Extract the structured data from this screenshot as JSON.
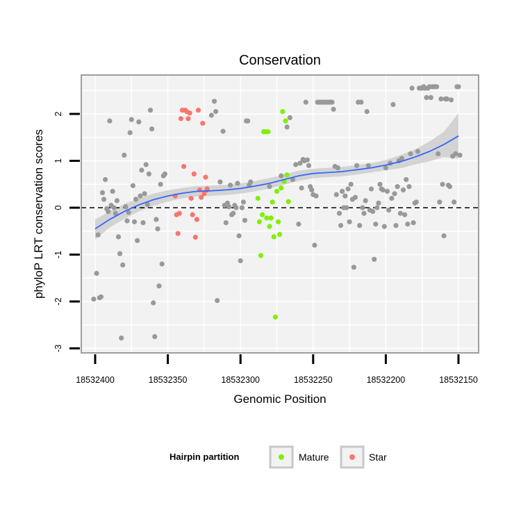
{
  "chart_data": {
    "type": "scatter",
    "title": "Conservation",
    "xlabel": "Genomic Position",
    "ylabel": "phyloP LRT conservation scores",
    "x_reversed": true,
    "xlim": [
      18532410,
      18532136
    ],
    "ylim": [
      -3.05,
      2.8
    ],
    "x_ticks": [
      18532400,
      18532350,
      18532300,
      18532250,
      18532200,
      18532150
    ],
    "x_tick_labels": [
      "18532400",
      "18532350",
      "18532300",
      "18532250",
      "18532200",
      "18532150"
    ],
    "y_ticks": [
      2,
      1,
      0,
      -1,
      -2,
      -3
    ],
    "y_tick_labels": [
      "2",
      "1",
      "0",
      "-1",
      "-2",
      "-3"
    ],
    "reference_line": {
      "y": 0,
      "style": "dashed"
    },
    "legend": {
      "title": "Hairpin partition",
      "position": "bottom",
      "entries": [
        {
          "label": "Mature",
          "color": "#7FF000"
        },
        {
          "label": "Star",
          "color": "#F8766D"
        }
      ]
    },
    "colors": {
      "other": "#999999",
      "mature": "#7FF000",
      "star": "#F8766D",
      "smooth": "#3366FF",
      "band": "#C8C8C8"
    },
    "smooth": {
      "x": [
        18532400,
        18532390,
        18532380,
        18532370,
        18532360,
        18532350,
        18532340,
        18532330,
        18532320,
        18532310,
        18532300,
        18532290,
        18532280,
        18532270,
        18532260,
        18532250,
        18532240,
        18532230,
        18532220,
        18532210,
        18532200,
        18532190,
        18532180,
        18532170,
        18532160,
        18532150
      ],
      "y": [
        -0.45,
        -0.25,
        -0.08,
        0.06,
        0.17,
        0.25,
        0.31,
        0.35,
        0.36,
        0.38,
        0.41,
        0.46,
        0.52,
        0.6,
        0.68,
        0.73,
        0.75,
        0.77,
        0.81,
        0.85,
        0.91,
        0.98,
        1.08,
        1.2,
        1.35,
        1.53
      ],
      "upper": [
        -0.25,
        -0.08,
        0.08,
        0.2,
        0.3,
        0.37,
        0.42,
        0.46,
        0.47,
        0.49,
        0.52,
        0.57,
        0.63,
        0.71,
        0.79,
        0.83,
        0.85,
        0.87,
        0.91,
        0.95,
        1.02,
        1.12,
        1.24,
        1.41,
        1.62,
        2.02
      ],
      "lower": [
        -0.68,
        -0.42,
        -0.24,
        -0.08,
        0.04,
        0.13,
        0.2,
        0.24,
        0.25,
        0.27,
        0.3,
        0.35,
        0.41,
        0.49,
        0.57,
        0.63,
        0.65,
        0.67,
        0.71,
        0.75,
        0.8,
        0.84,
        0.92,
        0.99,
        1.08,
        1.05
      ]
    },
    "series": [
      {
        "name": "Other",
        "points": [
          [
            18532401,
            -1.95
          ],
          [
            18532399,
            -1.4
          ],
          [
            18532398,
            -0.58
          ],
          [
            18532397,
            -1.92
          ],
          [
            18532396,
            -1.9
          ],
          [
            18532395,
            0.32
          ],
          [
            18532394,
            0.18
          ],
          [
            18532393,
            0.6
          ],
          [
            18532392,
            -0.02
          ],
          [
            18532391,
            -0.08
          ],
          [
            18532390,
            1.85
          ],
          [
            18532389,
            0.05
          ],
          [
            18532388,
            0.35
          ],
          [
            18532387,
            0.0
          ],
          [
            18532386,
            -0.12
          ],
          [
            18532385,
            0.15
          ],
          [
            18532384,
            -0.62
          ],
          [
            18532383,
            -0.98
          ],
          [
            18532382,
            -2.78
          ],
          [
            18532381,
            -1.22
          ],
          [
            18532380,
            1.12
          ],
          [
            18532379,
            0.02
          ],
          [
            18532378,
            -0.28
          ],
          [
            18532377,
            -0.1
          ],
          [
            18532376,
            1.6
          ],
          [
            18532375,
            1.88
          ],
          [
            18532374,
            0.47
          ],
          [
            18532373,
            -0.3
          ],
          [
            18532372,
            0.18
          ],
          [
            18532371,
            -0.7
          ],
          [
            18532370,
            1.83
          ],
          [
            18532369,
            0.25
          ],
          [
            18532368,
            0.8
          ],
          [
            18532367,
            -0.32
          ],
          [
            18532366,
            0.3
          ],
          [
            18532365,
            0.92
          ],
          [
            18532364,
            0.07
          ],
          [
            18532363,
            0.72
          ],
          [
            18532362,
            2.08
          ],
          [
            18532361,
            1.68
          ],
          [
            18532360,
            -2.03
          ],
          [
            18532359,
            -2.75
          ],
          [
            18532358,
            -0.25
          ],
          [
            18532357,
            -0.45
          ],
          [
            18532356,
            -1.67
          ],
          [
            18532355,
            0.5
          ],
          [
            18532354,
            -1.2
          ],
          [
            18532353,
            0.68
          ],
          [
            18532352,
            0.72
          ],
          [
            18532306,
            -0.15
          ],
          [
            18532323,
            0.38
          ],
          [
            18532320,
            1.97
          ],
          [
            18532318,
            2.27
          ],
          [
            18532317,
            2.05
          ],
          [
            18532316,
            -1.98
          ],
          [
            18532314,
            0.55
          ],
          [
            18532312,
            1.63
          ],
          [
            18532311,
            0.05
          ],
          [
            18532310,
            -0.32
          ],
          [
            18532309,
            0.1
          ],
          [
            18532308,
            0.02
          ],
          [
            18532307,
            0.48
          ],
          [
            18532305,
            -0.12
          ],
          [
            18532304,
            0.05
          ],
          [
            18532303,
            0.0
          ],
          [
            18532302,
            0.52
          ],
          [
            18532301,
            -0.6
          ],
          [
            18532300,
            -1.13
          ],
          [
            18532299,
            0.0
          ],
          [
            18532298,
            0.12
          ],
          [
            18532297,
            -0.27
          ],
          [
            18532296,
            1.85
          ],
          [
            18532295,
            1.85
          ],
          [
            18532294,
            0.48
          ],
          [
            18532293,
            0.55
          ],
          [
            18532280,
            0.45
          ],
          [
            18532272,
            0.68
          ],
          [
            18532268,
            1.72
          ],
          [
            18532266,
            1.92
          ],
          [
            18532264,
            0.6
          ],
          [
            18532262,
            0.92
          ],
          [
            18532260,
            -0.35
          ],
          [
            18532259,
            0.95
          ],
          [
            18532258,
            0.42
          ],
          [
            18532257,
            1.03
          ],
          [
            18532256,
            1.0
          ],
          [
            18532255,
            2.25
          ],
          [
            18532254,
            1.02
          ],
          [
            18532253,
            0.9
          ],
          [
            18532252,
            0.45
          ],
          [
            18532251,
            0.38
          ],
          [
            18532250,
            0.28
          ],
          [
            18532249,
            -0.8
          ],
          [
            18532248,
            0.25
          ],
          [
            18532247,
            2.25
          ],
          [
            18532246,
            2.25
          ],
          [
            18532245,
            2.25
          ],
          [
            18532244,
            2.25
          ],
          [
            18532243,
            2.25
          ],
          [
            18532242,
            2.25
          ],
          [
            18532241,
            2.25
          ],
          [
            18532240,
            2.25
          ],
          [
            18532239,
            2.25
          ],
          [
            18532238,
            2.25
          ],
          [
            18532237,
            2.25
          ],
          [
            18532236,
            2.1
          ],
          [
            18532235,
            0.88
          ],
          [
            18532234,
            0.28
          ],
          [
            18532233,
            0.85
          ],
          [
            18532232,
            -0.12
          ],
          [
            18532231,
            -0.38
          ],
          [
            18532230,
            0.35
          ],
          [
            18532229,
            0.0
          ],
          [
            18532228,
            0.25
          ],
          [
            18532227,
            0.0
          ],
          [
            18532226,
            0.4
          ],
          [
            18532225,
            -0.3
          ],
          [
            18532224,
            0.5
          ],
          [
            18532223,
            0.18
          ],
          [
            18532222,
            -1.27
          ],
          [
            18532221,
            0.22
          ],
          [
            18532220,
            0.9
          ],
          [
            18532219,
            2.25
          ],
          [
            18532218,
            -0.38
          ],
          [
            18532217,
            2.25
          ],
          [
            18532216,
            0.0
          ],
          [
            18532215,
            -0.12
          ],
          [
            18532214,
            0.15
          ],
          [
            18532213,
            2.05
          ],
          [
            18532212,
            0.9
          ],
          [
            18532211,
            -0.05
          ],
          [
            18532210,
            0.4
          ],
          [
            18532209,
            -0.08
          ],
          [
            18532208,
            -1.1
          ],
          [
            18532207,
            -0.35
          ],
          [
            18532206,
            0.0
          ],
          [
            18532205,
            0.1
          ],
          [
            18532204,
            0.5
          ],
          [
            18532203,
            0.4
          ],
          [
            18532202,
            0.38
          ],
          [
            18532201,
            -0.4
          ],
          [
            18532200,
            0.85
          ],
          [
            18532199,
            0.35
          ],
          [
            18532198,
            -0.05
          ],
          [
            18532197,
            0.95
          ],
          [
            18532196,
            0.2
          ],
          [
            18532195,
            2.2
          ],
          [
            18532194,
            0.3
          ],
          [
            18532193,
            -0.38
          ],
          [
            18532192,
            0.45
          ],
          [
            18532191,
            1.0
          ],
          [
            18532190,
            -0.12
          ],
          [
            18532189,
            1.05
          ],
          [
            18532188,
            0.38
          ],
          [
            18532187,
            -0.15
          ],
          [
            18532186,
            0.6
          ],
          [
            18532185,
            -0.35
          ],
          [
            18532184,
            0.45
          ],
          [
            18532183,
            1.15
          ],
          [
            18532182,
            2.55
          ],
          [
            18532181,
            -0.32
          ],
          [
            18532180,
            0.1
          ],
          [
            18532179,
            0.12
          ],
          [
            18532178,
            1.2
          ],
          [
            18532177,
            2.55
          ],
          [
            18532176,
            2.55
          ],
          [
            18532175,
            2.55
          ],
          [
            18532174,
            2.58
          ],
          [
            18532173,
            2.55
          ],
          [
            18532172,
            2.35
          ],
          [
            18532171,
            2.55
          ],
          [
            18532170,
            2.58
          ],
          [
            18532169,
            2.35
          ],
          [
            18532168,
            2.58
          ],
          [
            18532167,
            2.58
          ],
          [
            18532166,
            2.58
          ],
          [
            18532165,
            2.58
          ],
          [
            18532164,
            1.15
          ],
          [
            18532163,
            0.12
          ],
          [
            18532162,
            2.32
          ],
          [
            18532161,
            0.5
          ],
          [
            18532160,
            -0.6
          ],
          [
            18532159,
            2.32
          ],
          [
            18532158,
            2.32
          ],
          [
            18532157,
            0.48
          ],
          [
            18532156,
            0.45
          ],
          [
            18532155,
            2.3
          ],
          [
            18532154,
            1.1
          ],
          [
            18532153,
            0.12
          ],
          [
            18532152,
            1.15
          ],
          [
            18532151,
            2.58
          ],
          [
            18532150,
            2.58
          ],
          [
            18532149,
            1.12
          ]
        ]
      },
      {
        "name": "Mature",
        "points": [
          [
            18532288,
            0.2
          ],
          [
            18532287,
            -0.3
          ],
          [
            18532286,
            -1.02
          ],
          [
            18532285,
            -0.15
          ],
          [
            18532284,
            1.62
          ],
          [
            18532283,
            1.62
          ],
          [
            18532282,
            -0.22
          ],
          [
            18532281,
            1.62
          ],
          [
            18532280,
            -0.4
          ],
          [
            18532279,
            -0.22
          ],
          [
            18532278,
            0.12
          ],
          [
            18532277,
            -0.62
          ],
          [
            18532276,
            -2.33
          ],
          [
            18532275,
            0.35
          ],
          [
            18532274,
            -0.3
          ],
          [
            18532273,
            -0.57
          ],
          [
            18532272,
            0.42
          ],
          [
            18532271,
            2.05
          ],
          [
            18532270,
            0.56
          ],
          [
            18532269,
            1.85
          ],
          [
            18532268,
            0.7
          ],
          [
            18532267,
            0.13
          ]
        ]
      },
      {
        "name": "Star",
        "points": [
          [
            18532345,
            0.25
          ],
          [
            18532344,
            -0.15
          ],
          [
            18532343,
            -0.55
          ],
          [
            18532342,
            -0.12
          ],
          [
            18532341,
            1.9
          ],
          [
            18532340,
            2.08
          ],
          [
            18532339,
            0.88
          ],
          [
            18532338,
            2.08
          ],
          [
            18532337,
            2.05
          ],
          [
            18532336,
            1.9
          ],
          [
            18532335,
            2.02
          ],
          [
            18532334,
            0.2
          ],
          [
            18532333,
            -0.15
          ],
          [
            18532332,
            0.72
          ],
          [
            18532331,
            -0.63
          ],
          [
            18532330,
            -0.25
          ],
          [
            18532329,
            2.08
          ],
          [
            18532328,
            0.38
          ],
          [
            18532327,
            0.22
          ],
          [
            18532326,
            1.8
          ],
          [
            18532325,
            0.3
          ],
          [
            18532324,
            0.65
          ],
          [
            18532323,
            0.4
          ]
        ]
      }
    ]
  }
}
